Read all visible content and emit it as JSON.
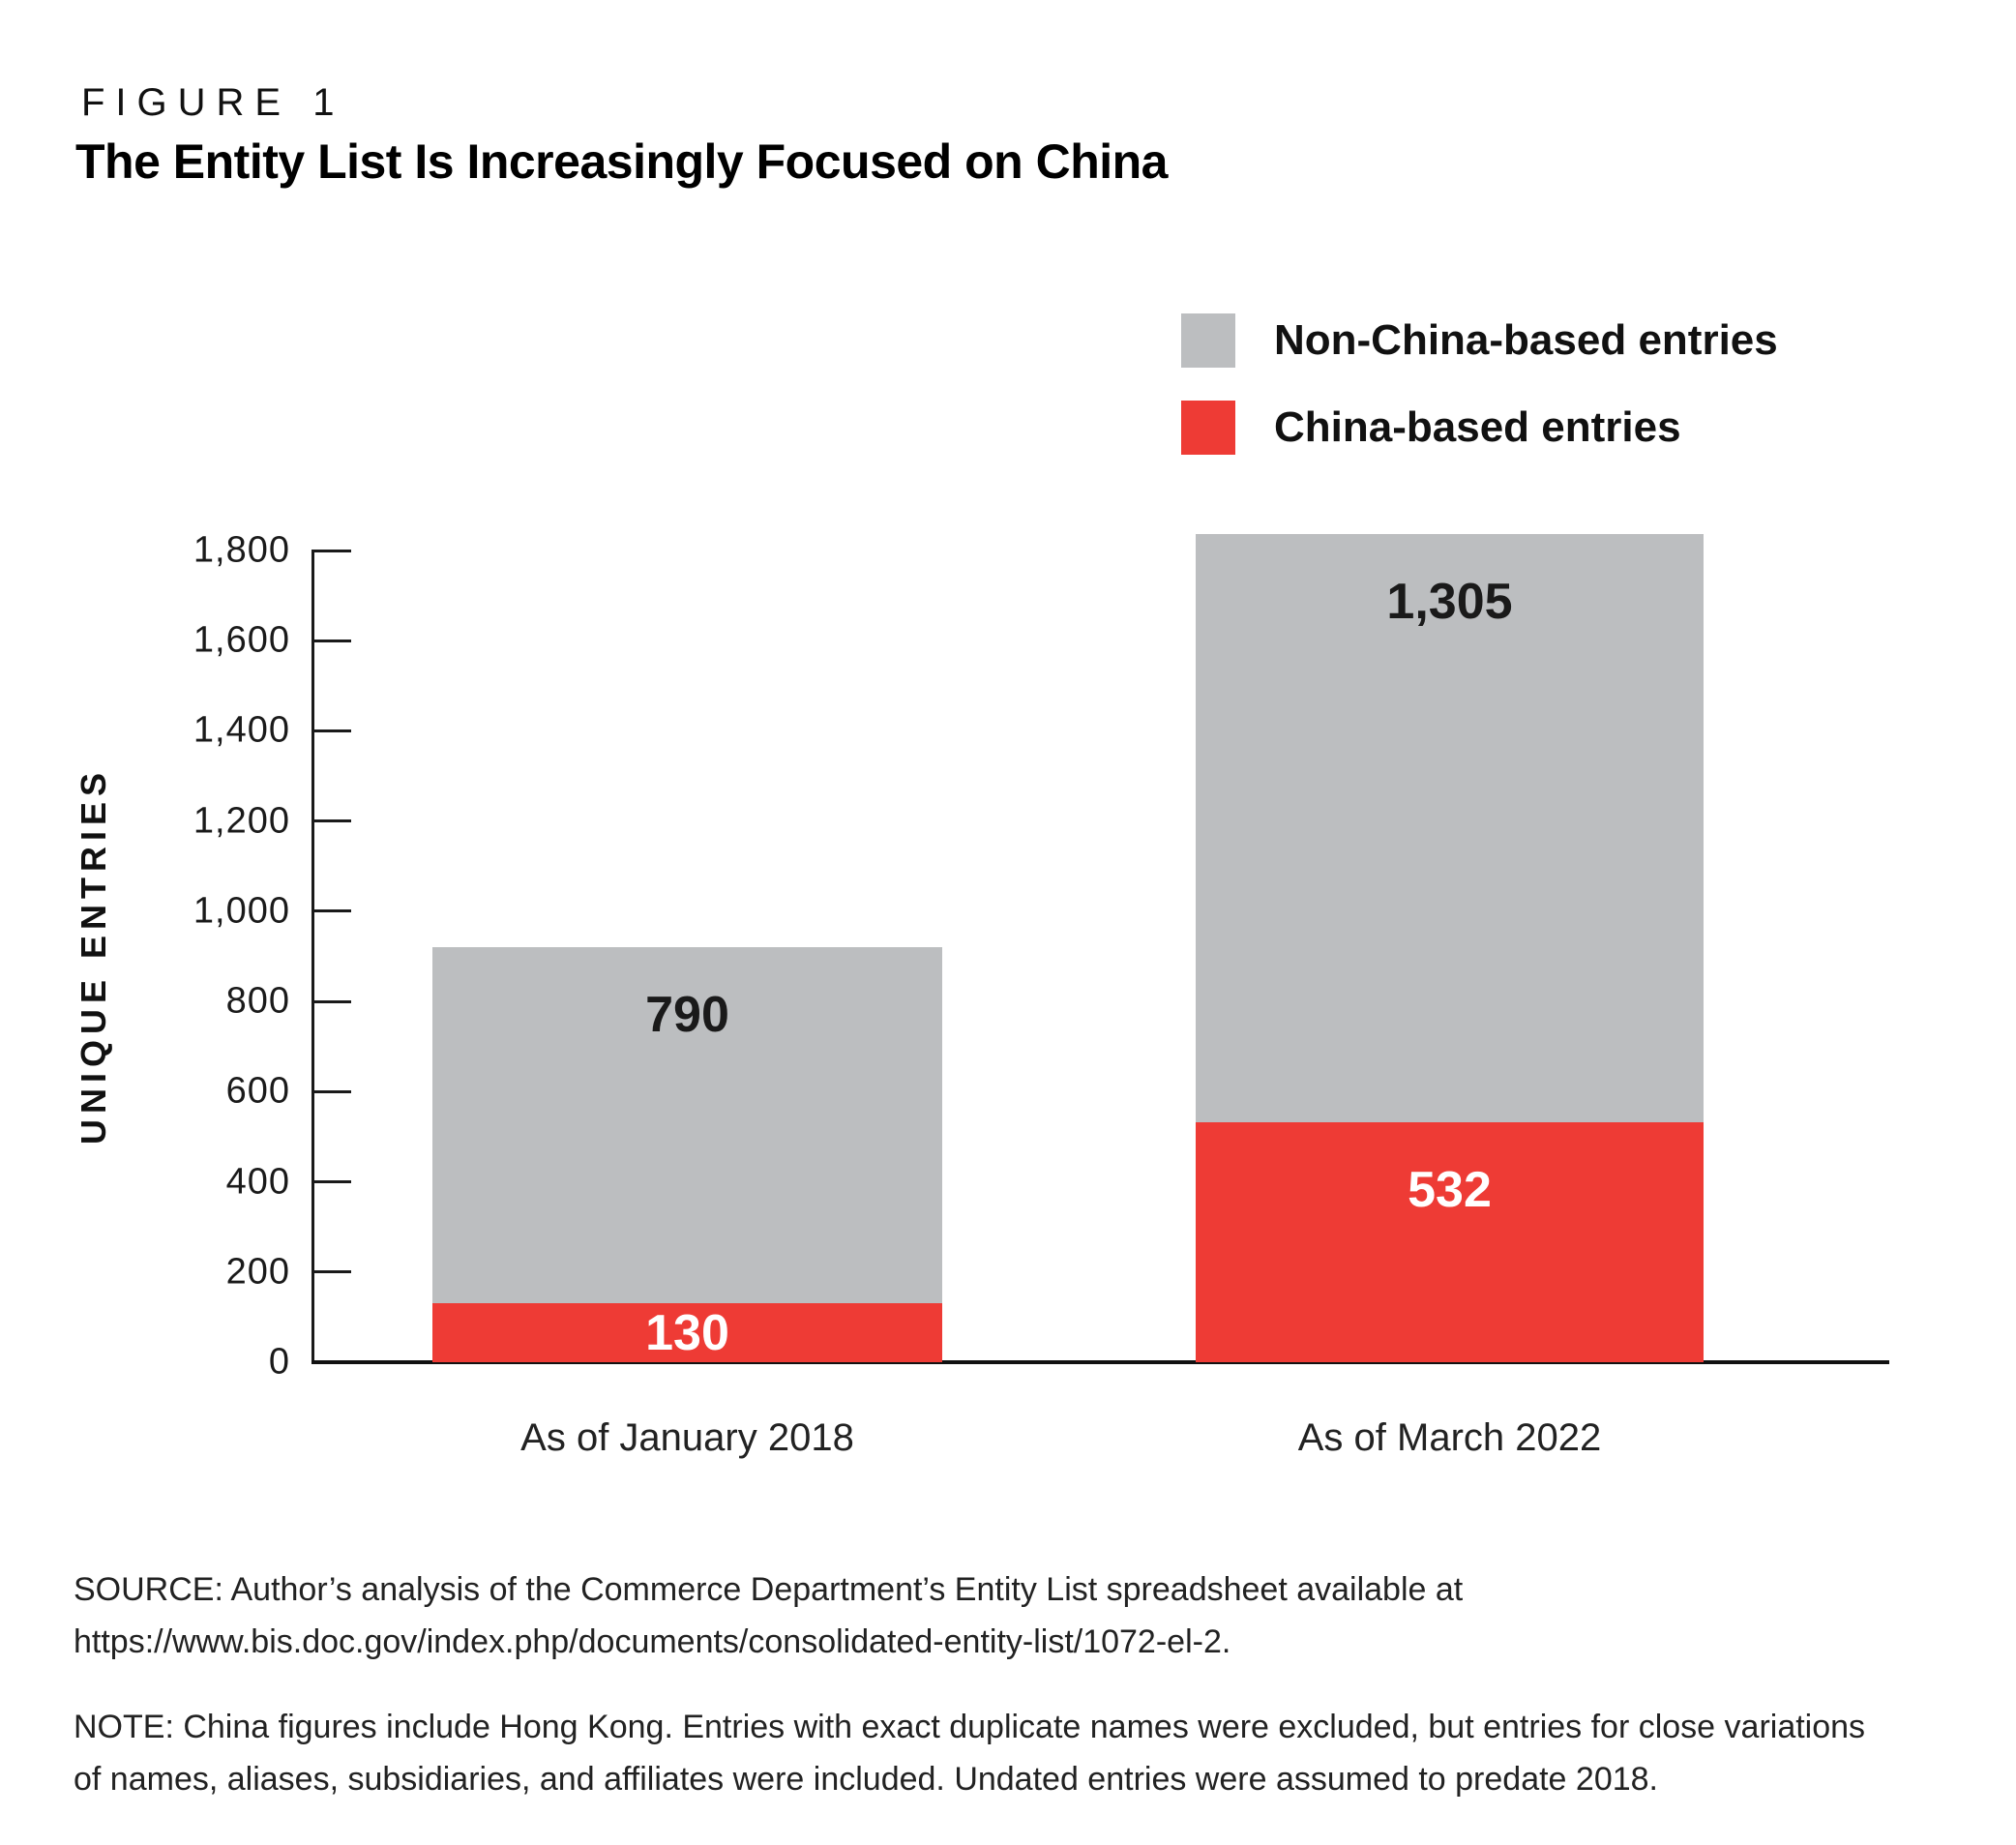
{
  "header": {
    "kicker": "FIGURE 1",
    "title": "The Entity List Is Increasingly Focused on China"
  },
  "legend": {
    "items": [
      {
        "label": "Non-China-based entries",
        "color": "#BCBEC0"
      },
      {
        "label": "China-based entries",
        "color": "#EE3B35"
      }
    ]
  },
  "chart_data": {
    "type": "bar",
    "stacked": true,
    "title": "The Entity List Is Increasingly Focused on China",
    "ylabel": "UNIQUE ENTRIES",
    "xlabel": "",
    "ylim": [
      0,
      1800
    ],
    "y_tick_interval": 200,
    "grid": false,
    "legend_position": "top-right",
    "categories": [
      "As of January 2018",
      "As of March 2022"
    ],
    "series": [
      {
        "name": "China-based entries",
        "color": "#EE3B35",
        "values": [
          130,
          532
        ],
        "value_labels": [
          "130",
          "532"
        ]
      },
      {
        "name": "Non-China-based entries",
        "color": "#BCBEC0",
        "values": [
          790,
          1305
        ],
        "value_labels": [
          "790",
          "1,305"
        ]
      }
    ],
    "y_ticks": [
      {
        "value": 0,
        "label": "0"
      },
      {
        "value": 200,
        "label": "200"
      },
      {
        "value": 400,
        "label": "400"
      },
      {
        "value": 600,
        "label": "600"
      },
      {
        "value": 800,
        "label": "800"
      },
      {
        "value": 1000,
        "label": "1,000"
      },
      {
        "value": 1200,
        "label": "1,200"
      },
      {
        "value": 1400,
        "label": "1,400"
      },
      {
        "value": 1600,
        "label": "1,600"
      },
      {
        "value": 1800,
        "label": "1,800"
      }
    ]
  },
  "footer": {
    "source": "SOURCE: Author’s analysis of the Commerce Department’s Entity List spreadsheet available at\nhttps://www.bis.doc.gov/index.php/documents/consolidated-entity-list/1072-el-2.",
    "note": "NOTE: China figures include Hong Kong. Entries with exact duplicate names were excluded, but entries for close variations\nof names, aliases, subsidiaries, and affiliates were included. Undated entries were assumed to predate 2018."
  }
}
